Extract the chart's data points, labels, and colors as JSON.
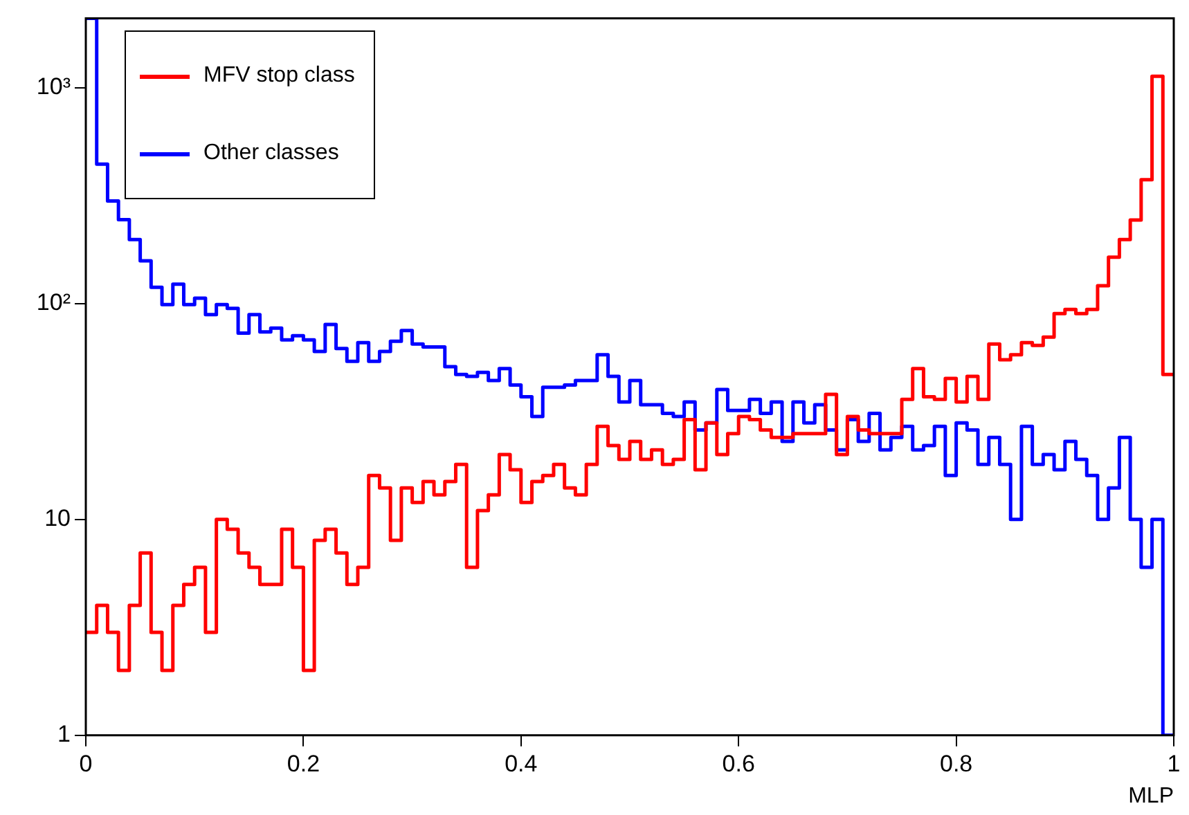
{
  "chart_data": {
    "type": "histogram",
    "xlabel": "MLP",
    "log": "y",
    "legend": "top left",
    "bins": [
      0,
      0.01,
      0.02,
      0.03,
      0.04,
      0.05,
      0.06,
      0.07,
      0.08,
      0.09,
      0.1,
      0.11,
      0.12,
      0.13,
      0.14,
      0.15,
      0.16,
      0.17,
      0.18,
      0.19,
      0.2,
      0.21,
      0.22,
      0.23,
      0.24,
      0.25,
      0.26,
      0.27,
      0.28,
      0.29,
      0.3,
      0.31,
      0.32,
      0.33,
      0.34,
      0.35,
      0.36,
      0.37,
      0.38,
      0.39,
      0.4,
      0.41,
      0.42,
      0.43,
      0.44,
      0.45,
      0.46,
      0.47,
      0.48,
      0.49,
      0.5,
      0.51,
      0.52,
      0.53,
      0.54,
      0.55,
      0.56,
      0.57,
      0.58,
      0.59,
      0.6,
      0.61,
      0.62,
      0.63,
      0.64,
      0.65,
      0.66,
      0.67,
      0.68,
      0.69,
      0.7,
      0.71,
      0.72,
      0.73,
      0.74,
      0.75,
      0.76,
      0.77,
      0.78,
      0.79,
      0.8,
      0.81,
      0.82,
      0.83,
      0.84,
      0.85,
      0.86,
      0.87,
      0.88,
      0.89,
      0.9,
      0.91,
      0.92,
      0.93,
      0.94,
      0.95,
      0.96,
      0.97,
      0.98,
      0.99,
      1
    ],
    "series": [
      {
        "name": "MFV stop class",
        "color": "#ff0000",
        "values": [
          3,
          4,
          3,
          2,
          4,
          7,
          3,
          2,
          4,
          5,
          6,
          3,
          10,
          9,
          7,
          6,
          5,
          5,
          9,
          6,
          2,
          8,
          9,
          7,
          5,
          6,
          16,
          14,
          8,
          14,
          12,
          15,
          13,
          15,
          18,
          6,
          11,
          13,
          20,
          17,
          12,
          15,
          16,
          18,
          14,
          13,
          18,
          27,
          22,
          19,
          23,
          19,
          21,
          18,
          19,
          29,
          17,
          28,
          20,
          25,
          30,
          29,
          26,
          24,
          24,
          25,
          25,
          25,
          38,
          20,
          30,
          26,
          25,
          25,
          25,
          36,
          50,
          37,
          36,
          45,
          35,
          46,
          36,
          65,
          55,
          58,
          66,
          64,
          70,
          90,
          94,
          90,
          94,
          121,
          164,
          198,
          244,
          375,
          1130,
          47
        ]
      },
      {
        "name": "Other classes",
        "color": "#0000ff",
        "values": [
          2100,
          443,
          299,
          245,
          198,
          158,
          119,
          99,
          123,
          99,
          106,
          89,
          99,
          95,
          73,
          89,
          74,
          77,
          68,
          71,
          68,
          60,
          80,
          62,
          54,
          66,
          54,
          60,
          67,
          75,
          65,
          63,
          63,
          51,
          47,
          46,
          48,
          44,
          50,
          42,
          37,
          30,
          41,
          41,
          42,
          44,
          44,
          58,
          46,
          35,
          44,
          34,
          34,
          31,
          30,
          35,
          26,
          28,
          40,
          32,
          32,
          36,
          31,
          35,
          23,
          35,
          28,
          34,
          26,
          21,
          29,
          23,
          31,
          21,
          24,
          27,
          21,
          22,
          27,
          16,
          28,
          26,
          18,
          24,
          18,
          10,
          27,
          18,
          20,
          17,
          23,
          19,
          16,
          10,
          14,
          24,
          10,
          6,
          10,
          1
        ]
      }
    ],
    "xlim": [
      0,
      1
    ],
    "xticks": [
      0,
      0.2,
      0.4,
      0.6,
      0.8,
      1
    ],
    "ylim": [
      1,
      2100
    ],
    "yticks": [
      1,
      10,
      {
        "value": 100,
        "label": "10²"
      },
      {
        "value": 1000,
        "label": "10³"
      }
    ]
  }
}
